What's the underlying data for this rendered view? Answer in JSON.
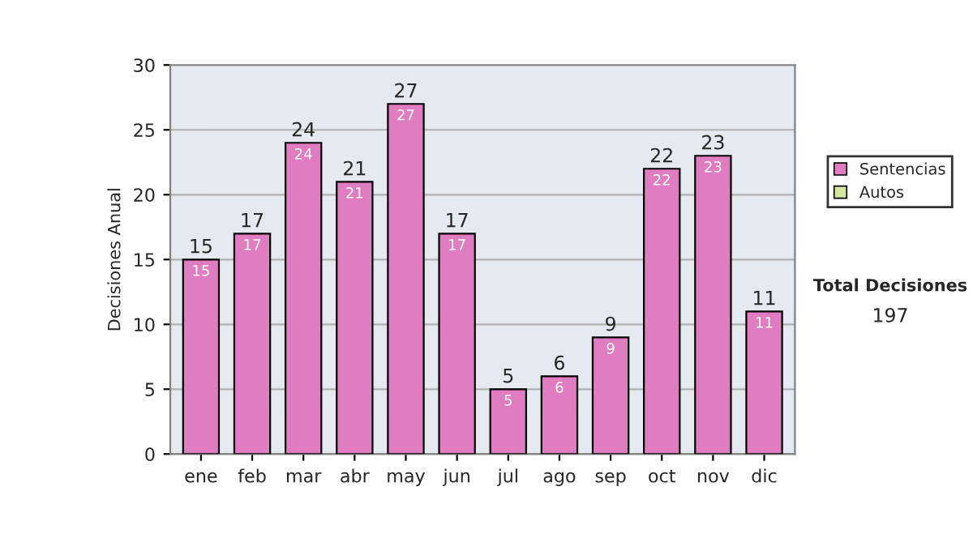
{
  "chart_data": {
    "type": "bar",
    "ylabel": "Decisiones Anual",
    "categories": [
      "ene",
      "feb",
      "mar",
      "abr",
      "may",
      "jun",
      "jul",
      "ago",
      "sep",
      "oct",
      "nov",
      "dic"
    ],
    "series": [
      {
        "name": "Sentencias",
        "color": "#e07cc0",
        "values": [
          15,
          17,
          24,
          21,
          27,
          17,
          5,
          6,
          9,
          22,
          23,
          11
        ],
        "value_labels": [
          "15",
          "17",
          "24",
          "21",
          "27",
          "17",
          "5",
          "6",
          "9",
          "22",
          "23",
          "11"
        ]
      },
      {
        "name": "Autos",
        "color": "#d4e8a0",
        "values": [
          null,
          null,
          null,
          null,
          null,
          null,
          null,
          null,
          null,
          null,
          null,
          null
        ]
      }
    ],
    "stacked": true,
    "totals": [
      "15",
      "17",
      "24",
      "21",
      "27",
      "17",
      "5",
      "6",
      "9",
      "22",
      "23",
      "11"
    ],
    "ylim": [
      0,
      30
    ],
    "yticks": [
      0,
      5,
      10,
      15,
      20,
      25,
      30
    ],
    "grid": "y",
    "legend": "right",
    "annotations": [
      "Total Decisiones",
      "197"
    ]
  }
}
